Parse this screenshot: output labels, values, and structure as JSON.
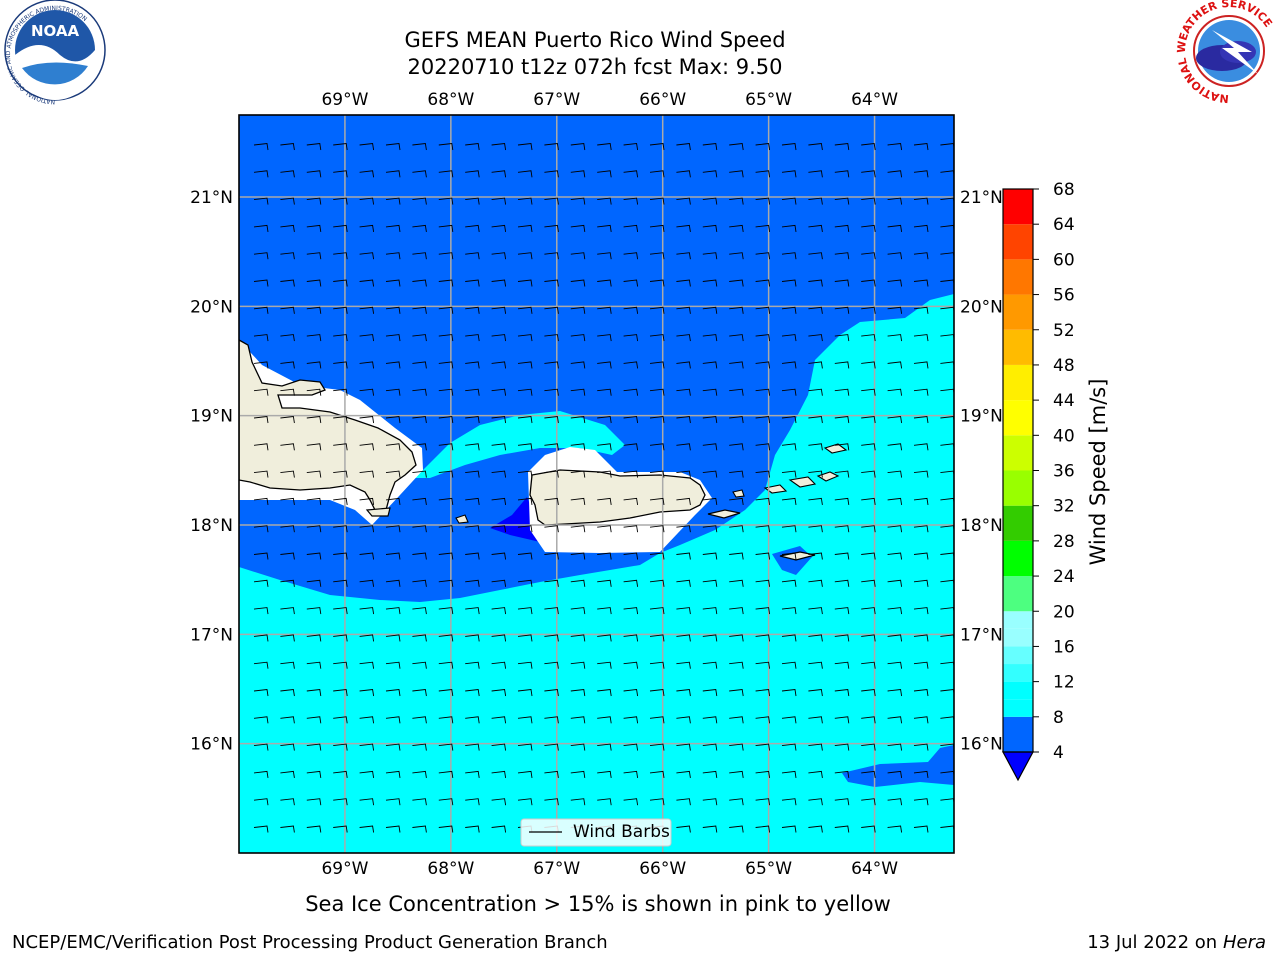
{
  "title": {
    "line1": "GEFS MEAN Puerto Rico Wind Speed",
    "line2": "20220710 t12z 072h fcst   Max: 9.50"
  },
  "map": {
    "lon_range": [
      -70.0,
      -63.25
    ],
    "lat_range": [
      15.0,
      21.75
    ],
    "lon_ticks": [
      "69°W",
      "68°W",
      "67°W",
      "66°W",
      "65°W",
      "64°W"
    ],
    "lat_ticks": [
      "21°N",
      "20°N",
      "19°N",
      "18°N",
      "17°N",
      "16°N"
    ],
    "gridlines": true,
    "legend": {
      "label": "Wind Barbs",
      "placement": "bottom-center"
    }
  },
  "colorbar": {
    "label": "Wind Speed [m/s]",
    "ticks": [
      "68",
      "64",
      "60",
      "56",
      "52",
      "48",
      "44",
      "40",
      "36",
      "32",
      "28",
      "24",
      "20",
      "16",
      "12",
      "8",
      "4"
    ],
    "levels": [
      4,
      8,
      10,
      12,
      14,
      16,
      18,
      20,
      24,
      28,
      32,
      36,
      40,
      44,
      48,
      52,
      56,
      60,
      64,
      68
    ],
    "colors": [
      "#0066ff",
      "#00ffff",
      "#00ffff",
      "#33ffff",
      "#66ffff",
      "#99ffff",
      "#99ffff",
      "#4dff80",
      "#00ff00",
      "#33cc00",
      "#99ff00",
      "#ccff00",
      "#ffff00",
      "#ffee00",
      "#ffbb00",
      "#ff9900",
      "#ff7700",
      "#ff4400",
      "#ff0000"
    ],
    "under_color": "#0000ff"
  },
  "colors": {
    "sea_high": "#0066ff",
    "sea_low": "#00ffff",
    "sea_min": "#0000ff",
    "land": "#f0eedc",
    "grid": "#aaaaaa"
  },
  "caption": "Sea Ice Concentration > 15% is shown in pink to yellow",
  "footer": {
    "left": "NCEP/EMC/Verification Post Processing Product Generation Branch",
    "right_prefix": "13 Jul 2022 on ",
    "right_host": "Hera"
  },
  "logos": {
    "left": {
      "text": "NOAA",
      "ring_text": "NATIONAL OCEANIC AND ATMOSPHERIC ADMINISTRATION"
    },
    "right": {
      "ring_text": "NATIONAL WEATHER SERVICE"
    }
  }
}
